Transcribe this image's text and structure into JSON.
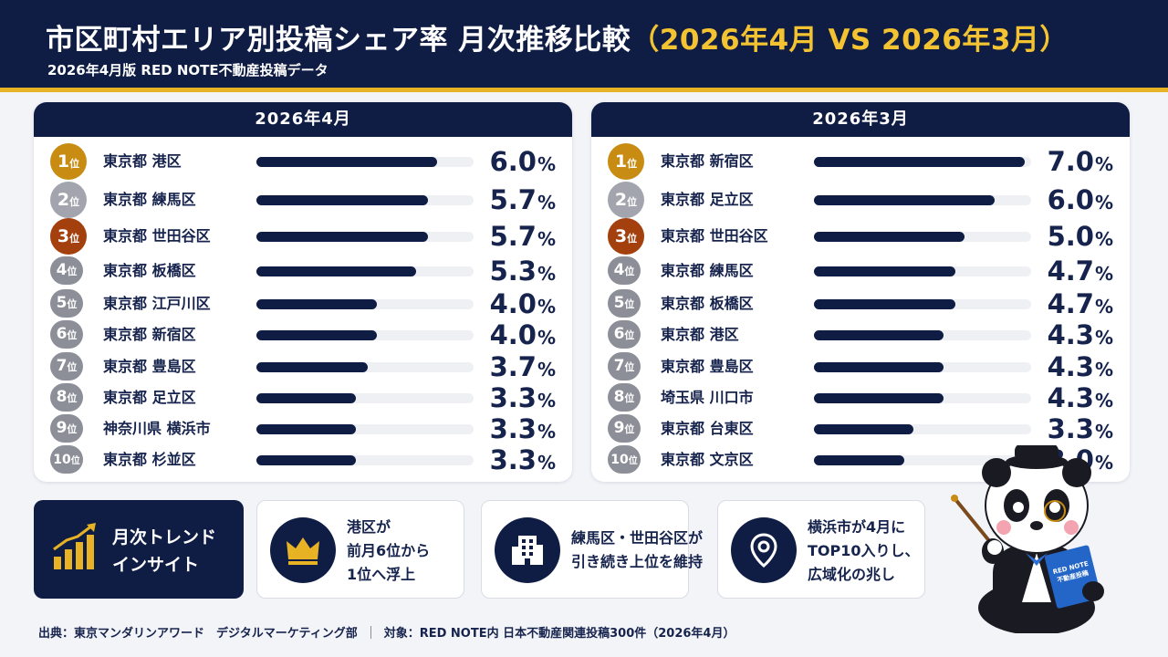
{
  "header": {
    "title_main": "市区町村エリア別投稿シェア率 月次推移比較",
    "title_highlight": "（2026年4月 VS 2026年3月）",
    "subtitle": "2026年4月版 RED NOTE不動産投稿データ"
  },
  "rank_suffix": "位",
  "percent_unit": "%",
  "chart_data": [
    {
      "type": "bar",
      "title": "2026年4月",
      "categories": [
        "東京都 港区",
        "東京都 練馬区",
        "東京都 世田谷区",
        "東京都 板橋区",
        "東京都 江戸川区",
        "東京都 新宿区",
        "東京都 豊島区",
        "東京都 足立区",
        "神奈川県 横浜市",
        "東京都 杉並区"
      ],
      "ranks": [
        "1",
        "2",
        "3",
        "4",
        "5",
        "6",
        "7",
        "8",
        "9",
        "10"
      ],
      "values": [
        6.0,
        5.7,
        5.7,
        5.3,
        4.0,
        4.0,
        3.7,
        3.3,
        3.3,
        3.3
      ],
      "labels": [
        "6.0",
        "5.7",
        "5.7",
        "5.3",
        "4.0",
        "4.0",
        "3.7",
        "3.3",
        "3.3",
        "3.3"
      ],
      "unit": "%"
    },
    {
      "type": "bar",
      "title": "2026年3月",
      "categories": [
        "東京都 新宿区",
        "東京都 足立区",
        "東京都 世田谷区",
        "東京都 練馬区",
        "東京都 板橋区",
        "東京都 港区",
        "東京都 豊島区",
        "埼玉県 川口市",
        "東京都 台東区",
        "東京都 文京区"
      ],
      "ranks": [
        "1",
        "2",
        "3",
        "4",
        "5",
        "6",
        "7",
        "8",
        "9",
        "10"
      ],
      "values": [
        7.0,
        6.0,
        5.0,
        4.7,
        4.7,
        4.3,
        4.3,
        4.3,
        3.3,
        3.0
      ],
      "labels": [
        "7.0",
        "6.0",
        "5.0",
        "4.7",
        "4.7",
        "4.3",
        "4.3",
        "4.3",
        "3.3",
        "3.0"
      ],
      "unit": "%"
    }
  ],
  "insights": {
    "heading": "月次トレンド\nインサイト",
    "cards": [
      {
        "icon": "crown-icon",
        "text": "港区が\n前月6位から\n1位へ浮上"
      },
      {
        "icon": "building-icon",
        "text": "練馬区・世田谷区が\n引き続き上位を維持"
      },
      {
        "icon": "location-pin-icon",
        "text": "横浜市が4月に\nTOP10入りし、\n広域化の兆し"
      }
    ]
  },
  "mascot": {
    "book_label": "RED NOTE\n不動産投稿"
  },
  "footer": {
    "source": "出典：東京マンダリンアワード　デジタルマーケティング部",
    "target": "対象：RED NOTE内 日本不動産関連投稿300件（2026年4月）"
  },
  "colors": {
    "navy": "#0f1d45",
    "gold_accent": "#e7b325",
    "rank1": "#c98c12",
    "rank2": "#a2a5ad",
    "rank3": "#a4400e",
    "rank_other": "#8c8f98"
  }
}
